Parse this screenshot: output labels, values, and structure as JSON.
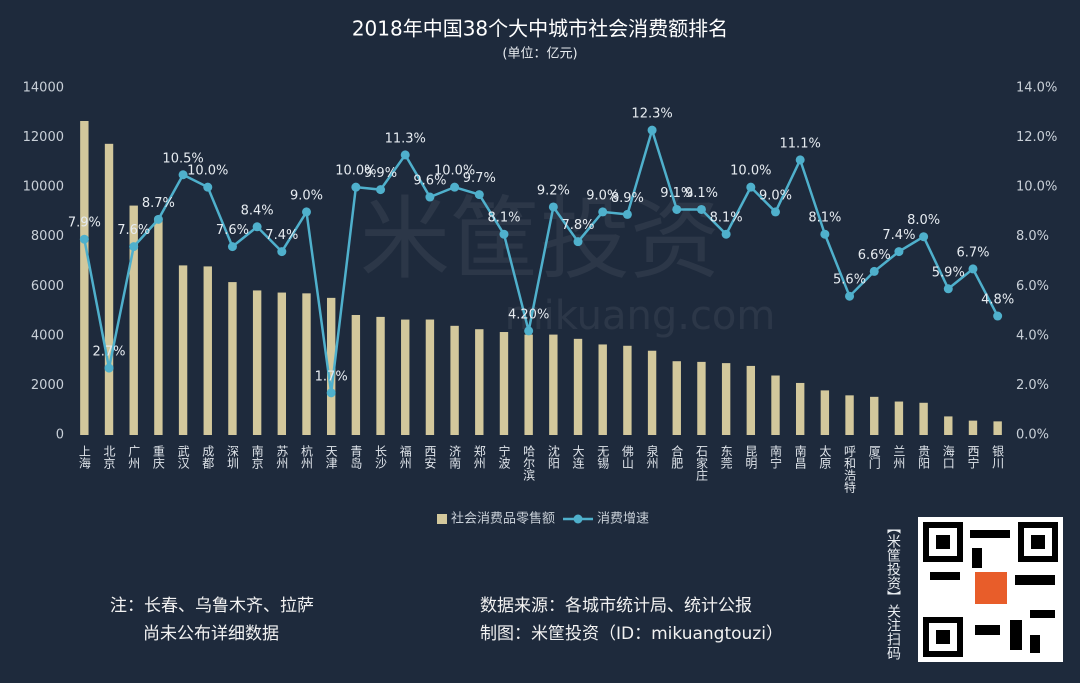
{
  "chart_data": {
    "type": "bar-line",
    "title": "2018年中国38个大中城市社会消费额排名",
    "subtitle": "(单位：亿元)",
    "categories": [
      "上海",
      "北京",
      "广州",
      "重庆",
      "武汉",
      "成都",
      "深圳",
      "南京",
      "苏州",
      "杭州",
      "天津",
      "青岛",
      "长沙",
      "福州",
      "西安",
      "济南",
      "郑州",
      "宁波",
      "哈尔滨",
      "沈阳",
      "大连",
      "无锡",
      "佛山",
      "泉州",
      "合肥",
      "石家庄",
      "东莞",
      "昆明",
      "南宁",
      "南昌",
      "太原",
      "呼和浩特",
      "厦门",
      "兰州",
      "贵阳",
      "海口",
      "西宁",
      "银川"
    ],
    "series": [
      {
        "name": "社会消费品零售额",
        "type": "bar",
        "color": "#d3c89c",
        "values": [
          12669,
          11748,
          9256,
          8770,
          6843,
          6802,
          6169,
          5833,
          5747,
          5715,
          5533,
          4842,
          4765,
          4657,
          4659,
          4405,
          4268,
          4155,
          4050,
          4051,
          3880,
          3653,
          3600,
          3400,
          2977,
          2950,
          2900,
          2787,
          2400,
          2100,
          1800,
          1600,
          1540,
          1350,
          1300,
          750,
          580,
          550
        ]
      },
      {
        "name": "消费增速",
        "type": "line",
        "axis": "y2",
        "color": "#4fb0cc",
        "values": [
          7.9,
          2.7,
          7.6,
          8.7,
          10.5,
          10.0,
          7.6,
          8.4,
          7.4,
          9.0,
          1.7,
          10.0,
          9.9,
          11.3,
          9.6,
          10.0,
          9.7,
          8.1,
          4.2,
          9.2,
          7.8,
          9.0,
          8.9,
          12.3,
          9.1,
          9.1,
          8.1,
          10.0,
          9.0,
          11.1,
          8.1,
          5.6,
          6.6,
          7.4,
          8.0,
          5.9,
          6.7,
          4.8
        ],
        "value_labels": [
          "7.9%",
          "2.7%",
          "7.6%",
          "8.7%",
          "10.5%",
          "10.0%",
          "7.6%",
          "8.4%",
          "7.4%",
          "9.0%",
          "1.7%",
          "10.0%",
          "9.9%",
          "11.3%",
          "9.6%",
          "10.0%",
          "9.7%",
          "8.1%",
          "4.20%",
          "9.2%",
          "7.8%",
          "9.0%",
          "8.9%",
          "12.3%",
          "9.1%",
          "9.1%",
          "8.1%",
          "10.0%",
          "9.0%",
          "11.1%",
          "8.1%",
          "5.6%",
          "6.6%",
          "7.4%",
          "8.0%",
          "5.9%",
          "6.7%",
          "4.8%"
        ]
      }
    ],
    "ylim": [
      0,
      14000
    ],
    "yticks": [
      0,
      2000,
      4000,
      6000,
      8000,
      10000,
      12000,
      14000
    ],
    "y2lim": [
      0,
      14
    ],
    "y2ticks": [
      {
        "value": 0,
        "label": "0.0%"
      },
      {
        "value": 2,
        "label": "2.0%"
      },
      {
        "value": 4,
        "label": "4.0%"
      },
      {
        "value": 6,
        "label": "6.0%"
      },
      {
        "value": 8,
        "label": "8.0%"
      },
      {
        "value": 10,
        "label": "10.0%"
      },
      {
        "value": 12,
        "label": "12.0%"
      },
      {
        "value": 14,
        "label": "14.0%"
      }
    ],
    "legend": "bottom",
    "watermark": "米筐投资",
    "watermark_url": "mikuang.com"
  },
  "notes": {
    "note_line1": "注：长春、乌鲁木齐、拉萨",
    "note_line2": "尚未公布详细数据",
    "source": "数据来源：各城市统计局、统计公报",
    "credit": "制图：米筐投资（ID：mikuangtouzi）",
    "qr_caption": "【米筐投资】关注扫码"
  }
}
